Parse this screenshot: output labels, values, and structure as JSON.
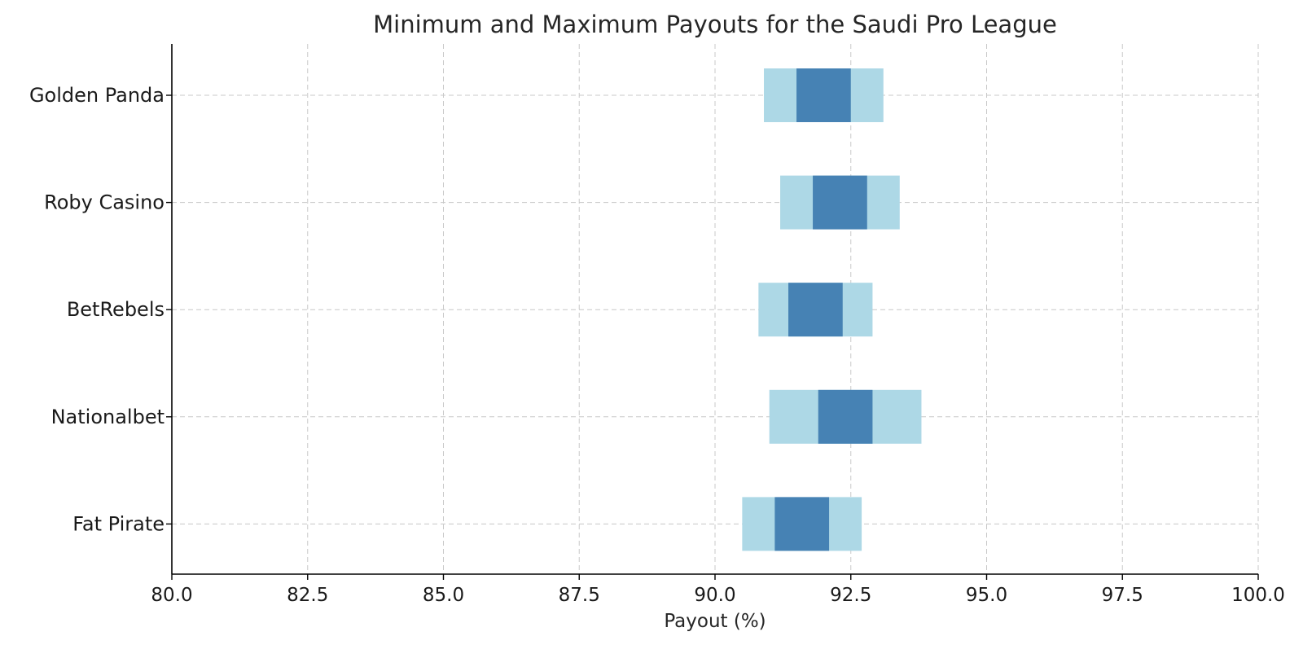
{
  "chart_data": {
    "type": "bar",
    "orientation": "horizontal",
    "title": "Minimum and Maximum Payouts for the Saudi Pro League",
    "xlabel": "Payout (%)",
    "ylabel": "",
    "xlim": [
      80.0,
      100.0
    ],
    "x_ticks": [
      "80.0",
      "82.5",
      "85.0",
      "87.5",
      "90.0",
      "92.5",
      "95.0",
      "97.5",
      "100.0"
    ],
    "x_tick_values": [
      80.0,
      82.5,
      85.0,
      87.5,
      90.0,
      92.5,
      95.0,
      97.5,
      100.0
    ],
    "grid": true,
    "legend": "none",
    "categories": [
      "Golden Panda",
      "Roby Casino",
      "BetRebels",
      "Nationalbet",
      "Fat Pirate"
    ],
    "series": [
      {
        "values_min": [
          90.9,
          91.2,
          90.8,
          91.0,
          90.5
        ],
        "values_max": [
          93.1,
          93.4,
          92.9,
          93.8,
          92.7
        ],
        "color": "#add8e6"
      },
      {
        "values_min": [
          91.5,
          91.8,
          91.35,
          91.9,
          91.1
        ],
        "values_max": [
          92.5,
          92.8,
          92.35,
          92.9,
          92.1
        ],
        "color": "#4682b4"
      }
    ]
  }
}
